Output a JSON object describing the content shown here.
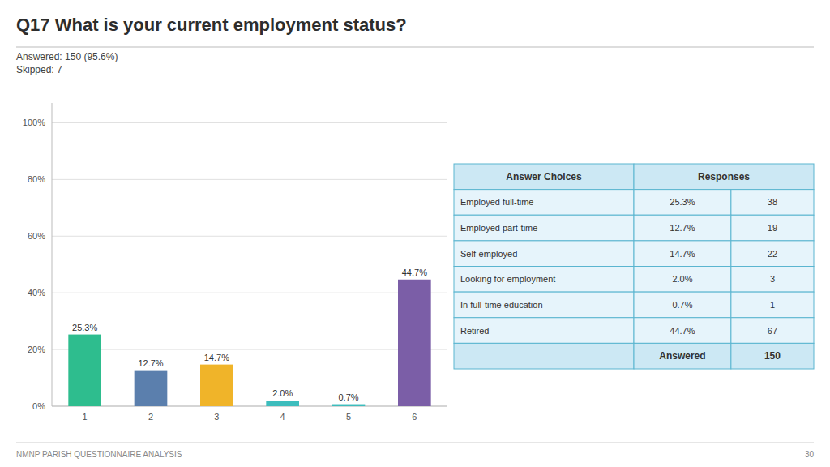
{
  "chart_data": {
    "type": "bar",
    "title": "Q17  What is your current employment status?",
    "subtitle": "Answered: 150 (95.6%)",
    "annotations": [
      "Skipped: 7"
    ],
    "categories": [
      "1",
      "2",
      "3",
      "4",
      "5",
      "6"
    ],
    "values": [
      25.3,
      12.7,
      14.7,
      2.0,
      0.7,
      44.7
    ],
    "value_labels": [
      "25.3%",
      "12.7%",
      "14.7%",
      "2.0%",
      "0.7%",
      "44.7%"
    ],
    "data_labels": true,
    "colors": [
      "#2ebd8e",
      "#5b7fad",
      "#f0b429",
      "#3dbdbd",
      "#3dbdbd",
      "#7b5ea7"
    ],
    "ylim": [
      0,
      107
    ],
    "yticks": [
      {
        "value": 0,
        "label": "0%"
      },
      {
        "value": 20,
        "label": "20%"
      },
      {
        "value": 40,
        "label": "40%"
      },
      {
        "value": 60,
        "label": "60%"
      },
      {
        "value": 80,
        "label": "80%"
      },
      {
        "value": 100,
        "label": "100%"
      }
    ],
    "grid": true
  },
  "table": {
    "headers": [
      "Answer Choices",
      "Responses"
    ],
    "rows": [
      {
        "label": "Employed full-time",
        "percent": "25.3%",
        "count": 38
      },
      {
        "label": "Employed part-time",
        "percent": "12.7%",
        "count": 19
      },
      {
        "label": "Self-employed",
        "percent": "14.7%",
        "count": 22
      },
      {
        "label": "Looking for employment",
        "percent": "2.0%",
        "count": 3
      },
      {
        "label": "In full-time education",
        "percent": "0.7%",
        "count": 1
      },
      {
        "label": "Retired",
        "percent": "44.7%",
        "count": 67
      }
    ],
    "footer": [
      "Answered",
      150
    ],
    "header_color": "#cce8f4",
    "row_color": "#e6f4fb",
    "border_color": "#5ab5d0"
  },
  "footer": "NMNP PARISH QUESTIONNAIRE ANALYSIS",
  "page_number": 30
}
